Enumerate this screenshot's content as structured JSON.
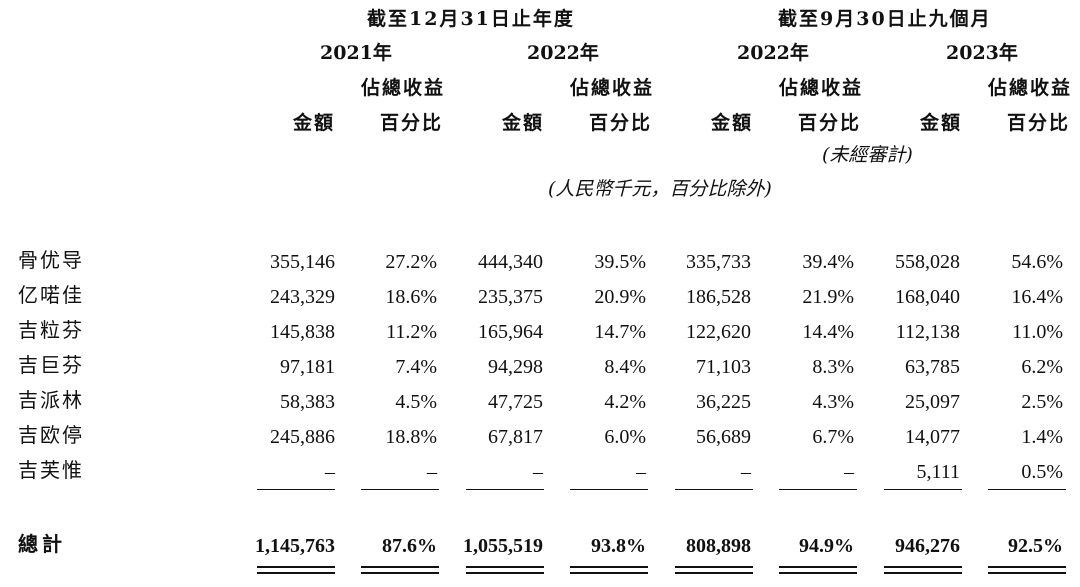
{
  "header": {
    "period_year": "截至12月31日止年度",
    "period_nine_months": "截至9月30日止九個月",
    "years": [
      "2021年",
      "2022年",
      "2022年",
      "2023年"
    ],
    "col_amount": "金額",
    "col_pct_line1": "佔總收益",
    "col_pct_line2": "百分比",
    "unaudited": "(未經審計)",
    "unit_note": "(人民幣千元，百分比除外)"
  },
  "rows": [
    {
      "label": "骨优导",
      "values": [
        "355,146",
        "27.2%",
        "444,340",
        "39.5%",
        "335,733",
        "39.4%",
        "558,028",
        "54.6%"
      ]
    },
    {
      "label": "亿喏佳",
      "values": [
        "243,329",
        "18.6%",
        "235,375",
        "20.9%",
        "186,528",
        "21.9%",
        "168,040",
        "16.4%"
      ]
    },
    {
      "label": "吉粒芬",
      "values": [
        "145,838",
        "11.2%",
        "165,964",
        "14.7%",
        "122,620",
        "14.4%",
        "112,138",
        "11.0%"
      ]
    },
    {
      "label": "吉巨芬",
      "values": [
        "97,181",
        "7.4%",
        "94,298",
        "8.4%",
        "71,103",
        "8.3%",
        "63,785",
        "6.2%"
      ]
    },
    {
      "label": "吉派林",
      "values": [
        "58,383",
        "4.5%",
        "47,725",
        "4.2%",
        "36,225",
        "4.3%",
        "25,097",
        "2.5%"
      ]
    },
    {
      "label": "吉欧停",
      "values": [
        "245,886",
        "18.8%",
        "67,817",
        "6.0%",
        "56,689",
        "6.7%",
        "14,077",
        "1.4%"
      ]
    },
    {
      "label": "吉芙惟",
      "values": [
        "–",
        "–",
        "–",
        "–",
        "–",
        "–",
        "5,111",
        "0.5%"
      ]
    }
  ],
  "total": {
    "label": "總計",
    "values": [
      "1,145,763",
      "87.6%",
      "1,055,519",
      "93.8%",
      "808,898",
      "94.9%",
      "946,276",
      "92.5%"
    ]
  }
}
